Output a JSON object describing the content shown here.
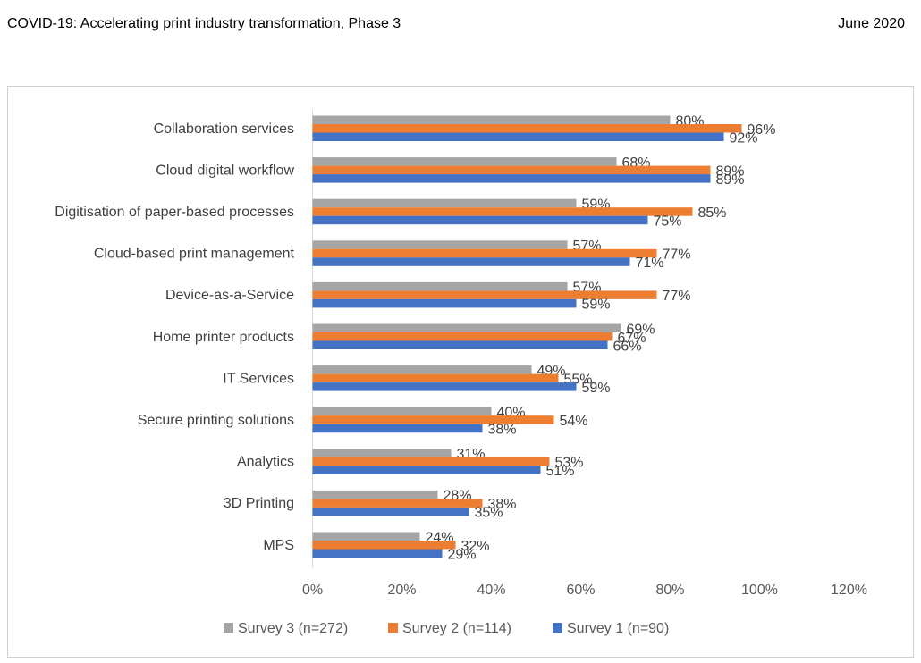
{
  "header": {
    "title": "COVID-19: Accelerating print industry transformation, Phase 3",
    "date": "June 2020"
  },
  "chart_data": {
    "type": "bar",
    "orientation": "horizontal",
    "categories": [
      "Collaboration services",
      "Cloud digital workflow",
      "Digitisation of paper-based processes",
      "Cloud-based print management",
      "Device-as-a-Service",
      "Home printer products",
      "IT Services",
      "Secure printing solutions",
      "Analytics",
      "3D Printing",
      "MPS"
    ],
    "series": [
      {
        "name": "Survey 3 (n=272)",
        "color": "#a5a5a5",
        "values": [
          80,
          68,
          59,
          57,
          57,
          69,
          49,
          40,
          31,
          28,
          24
        ]
      },
      {
        "name": "Survey 2 (n=114)",
        "color": "#ed7d31",
        "values": [
          96,
          89,
          85,
          77,
          77,
          67,
          55,
          54,
          53,
          38,
          32
        ]
      },
      {
        "name": "Survey 1 (n=90)",
        "color": "#4472c4",
        "values": [
          92,
          89,
          75,
          71,
          59,
          66,
          59,
          38,
          51,
          35,
          29
        ]
      }
    ],
    "xlim": [
      0,
      120
    ],
    "x_ticks": [
      "0%",
      "20%",
      "40%",
      "60%",
      "80%",
      "100%",
      "120%"
    ],
    "value_suffix": "%",
    "grid": false,
    "legend_position": "bottom",
    "xlabel": "",
    "ylabel": ""
  }
}
